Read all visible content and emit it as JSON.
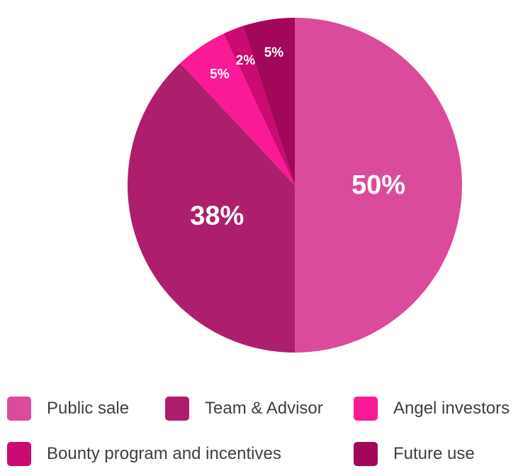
{
  "chart_data": {
    "type": "pie",
    "title": "",
    "slices": [
      {
        "label": "Public sale",
        "value": 50,
        "display": "50%",
        "color": "#db4b9b"
      },
      {
        "label": "Team & Advisor",
        "value": 38,
        "display": "38%",
        "color": "#ad1f6c"
      },
      {
        "label": "Angel investors",
        "value": 5,
        "display": "5%",
        "color": "#fa1a96"
      },
      {
        "label": "Bounty program and incentives",
        "value": 2,
        "display": "2%",
        "color": "#cb0a72"
      },
      {
        "label": "Future use",
        "value": 5,
        "display": "5%",
        "color": "#a3075a"
      }
    ],
    "start_angle_deg": 0,
    "direction": "clockwise-from-top",
    "legend_position": "bottom"
  }
}
